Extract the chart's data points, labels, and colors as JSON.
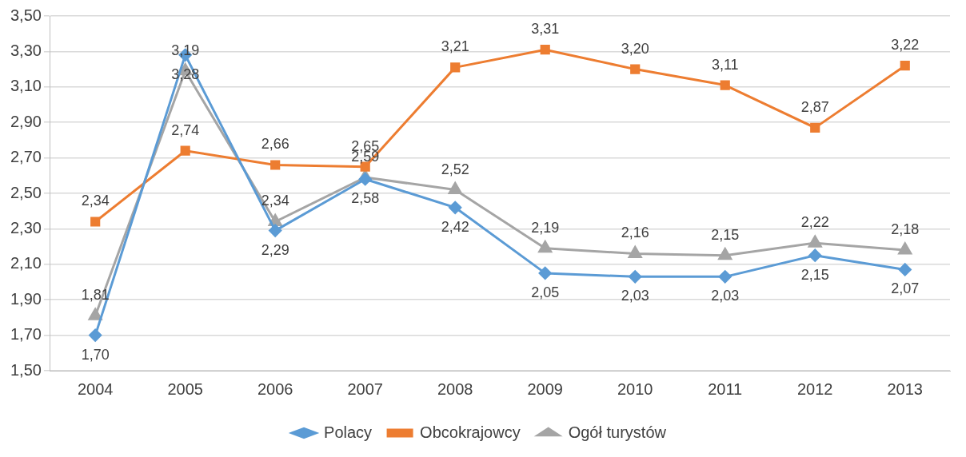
{
  "chart_data": {
    "type": "line",
    "categories": [
      "2004",
      "2005",
      "2006",
      "2007",
      "2008",
      "2009",
      "2010",
      "2011",
      "2012",
      "2013"
    ],
    "series": [
      {
        "name": "Polacy",
        "color": "#5b9bd5",
        "marker": "diamond",
        "values": [
          1.7,
          3.28,
          2.29,
          2.58,
          2.42,
          2.05,
          2.03,
          2.03,
          2.15,
          2.07
        ],
        "value_labels": [
          "1,70",
          "3,28",
          "2,29",
          "2,58",
          "2,42",
          "2,05",
          "2,03",
          "2,03",
          "2,15",
          "2,07"
        ]
      },
      {
        "name": "Obcokrajowcy",
        "color": "#ed7d31",
        "marker": "square",
        "values": [
          2.34,
          2.74,
          2.66,
          2.65,
          3.21,
          3.31,
          3.2,
          3.11,
          2.87,
          3.22
        ],
        "value_labels": [
          "2,34",
          "2,74",
          "2,66",
          "2,65",
          "3,21",
          "3,31",
          "3,20",
          "3,11",
          "2,87",
          "3,22"
        ]
      },
      {
        "name": "Ogół turystów",
        "color": "#a5a5a5",
        "marker": "triangle",
        "values": [
          1.81,
          3.19,
          2.34,
          2.59,
          2.52,
          2.19,
          2.16,
          2.15,
          2.22,
          2.18
        ],
        "value_labels": [
          "1,81",
          "3,19",
          "2,34",
          "2,59",
          "2,52",
          "2,19",
          "2,16",
          "2,15",
          "2,22",
          "2,18"
        ]
      }
    ],
    "ylim": [
      1.5,
      3.5
    ],
    "yticks": [
      {
        "value": 1.5,
        "label": "1,50"
      },
      {
        "value": 1.7,
        "label": "1,70"
      },
      {
        "value": 1.9,
        "label": "1,90"
      },
      {
        "value": 2.1,
        "label": "2,10"
      },
      {
        "value": 2.3,
        "label": "2,30"
      },
      {
        "value": 2.5,
        "label": "2,50"
      },
      {
        "value": 2.7,
        "label": "2,70"
      },
      {
        "value": 2.9,
        "label": "2,90"
      },
      {
        "value": 3.1,
        "label": "3,10"
      },
      {
        "value": 3.3,
        "label": "3,30"
      },
      {
        "value": 3.5,
        "label": "3,50"
      }
    ],
    "grid": "y",
    "legend": "bottom",
    "line_style": "solid"
  }
}
